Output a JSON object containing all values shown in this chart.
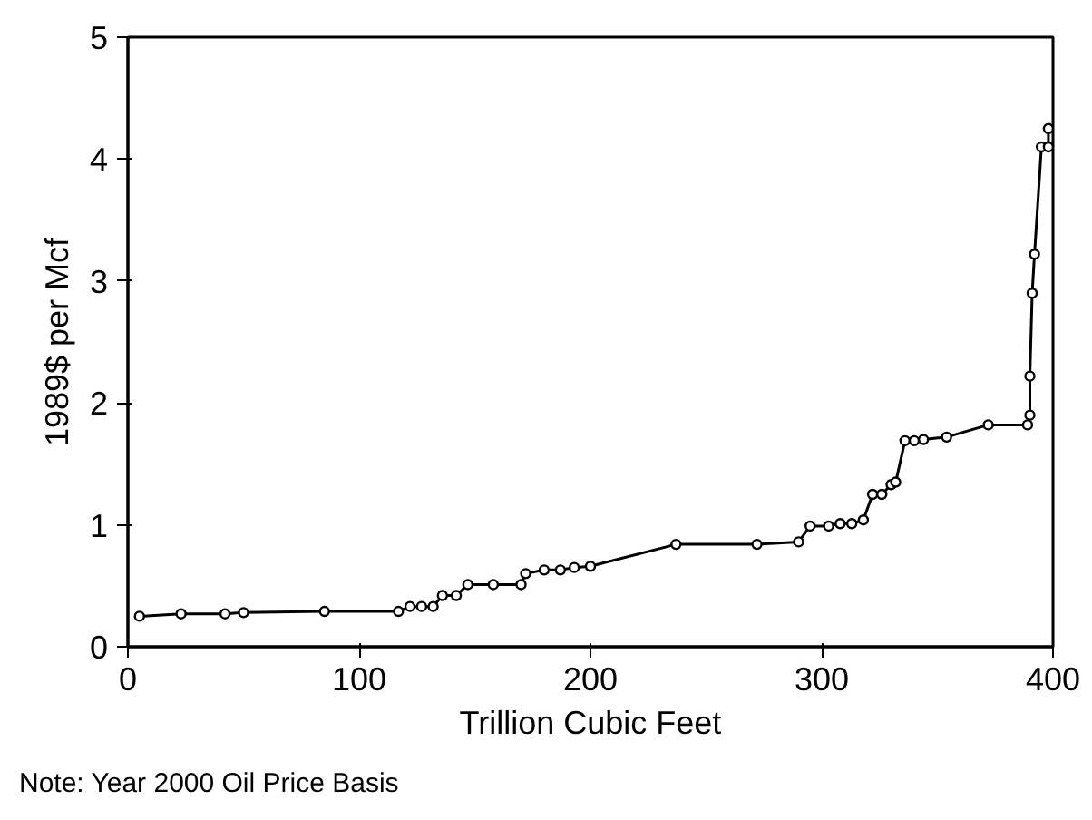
{
  "chart_data": {
    "type": "line",
    "xlabel": "Trillion Cubic Feet",
    "ylabel": "1989$ per Mcf",
    "annotations": [
      "Note: Year 2000 Oil Price Basis"
    ],
    "x": [
      5,
      23,
      42,
      50,
      85,
      117,
      122,
      127,
      132,
      136,
      142,
      147,
      158,
      170,
      172,
      180,
      187,
      193,
      200,
      237,
      272,
      290,
      295,
      303,
      308,
      313,
      318,
      322,
      326,
      330,
      332,
      336,
      340,
      344,
      354,
      372,
      389,
      390,
      390,
      391,
      392,
      395,
      398,
      398
    ],
    "series": [
      {
        "color": "#000000",
        "values": [
          0.25,
          0.27,
          0.27,
          0.28,
          0.29,
          0.29,
          0.33,
          0.33,
          0.33,
          0.42,
          0.42,
          0.51,
          0.51,
          0.51,
          0.6,
          0.63,
          0.63,
          0.65,
          0.66,
          0.84,
          0.84,
          0.86,
          0.99,
          0.99,
          1.01,
          1.01,
          1.04,
          1.25,
          1.25,
          1.33,
          1.35,
          1.69,
          1.69,
          1.7,
          1.72,
          1.82,
          1.82,
          1.9,
          2.22,
          2.9,
          3.22,
          4.1,
          4.1,
          4.25
        ]
      }
    ],
    "xlim": [
      0,
      400
    ],
    "ylim": [
      0,
      5
    ],
    "xticks": [
      0,
      100,
      200,
      300,
      400
    ],
    "yticks": [
      0,
      1,
      2,
      3,
      4,
      5
    ],
    "grid": false,
    "marker": "circle",
    "line_style": "solid"
  }
}
